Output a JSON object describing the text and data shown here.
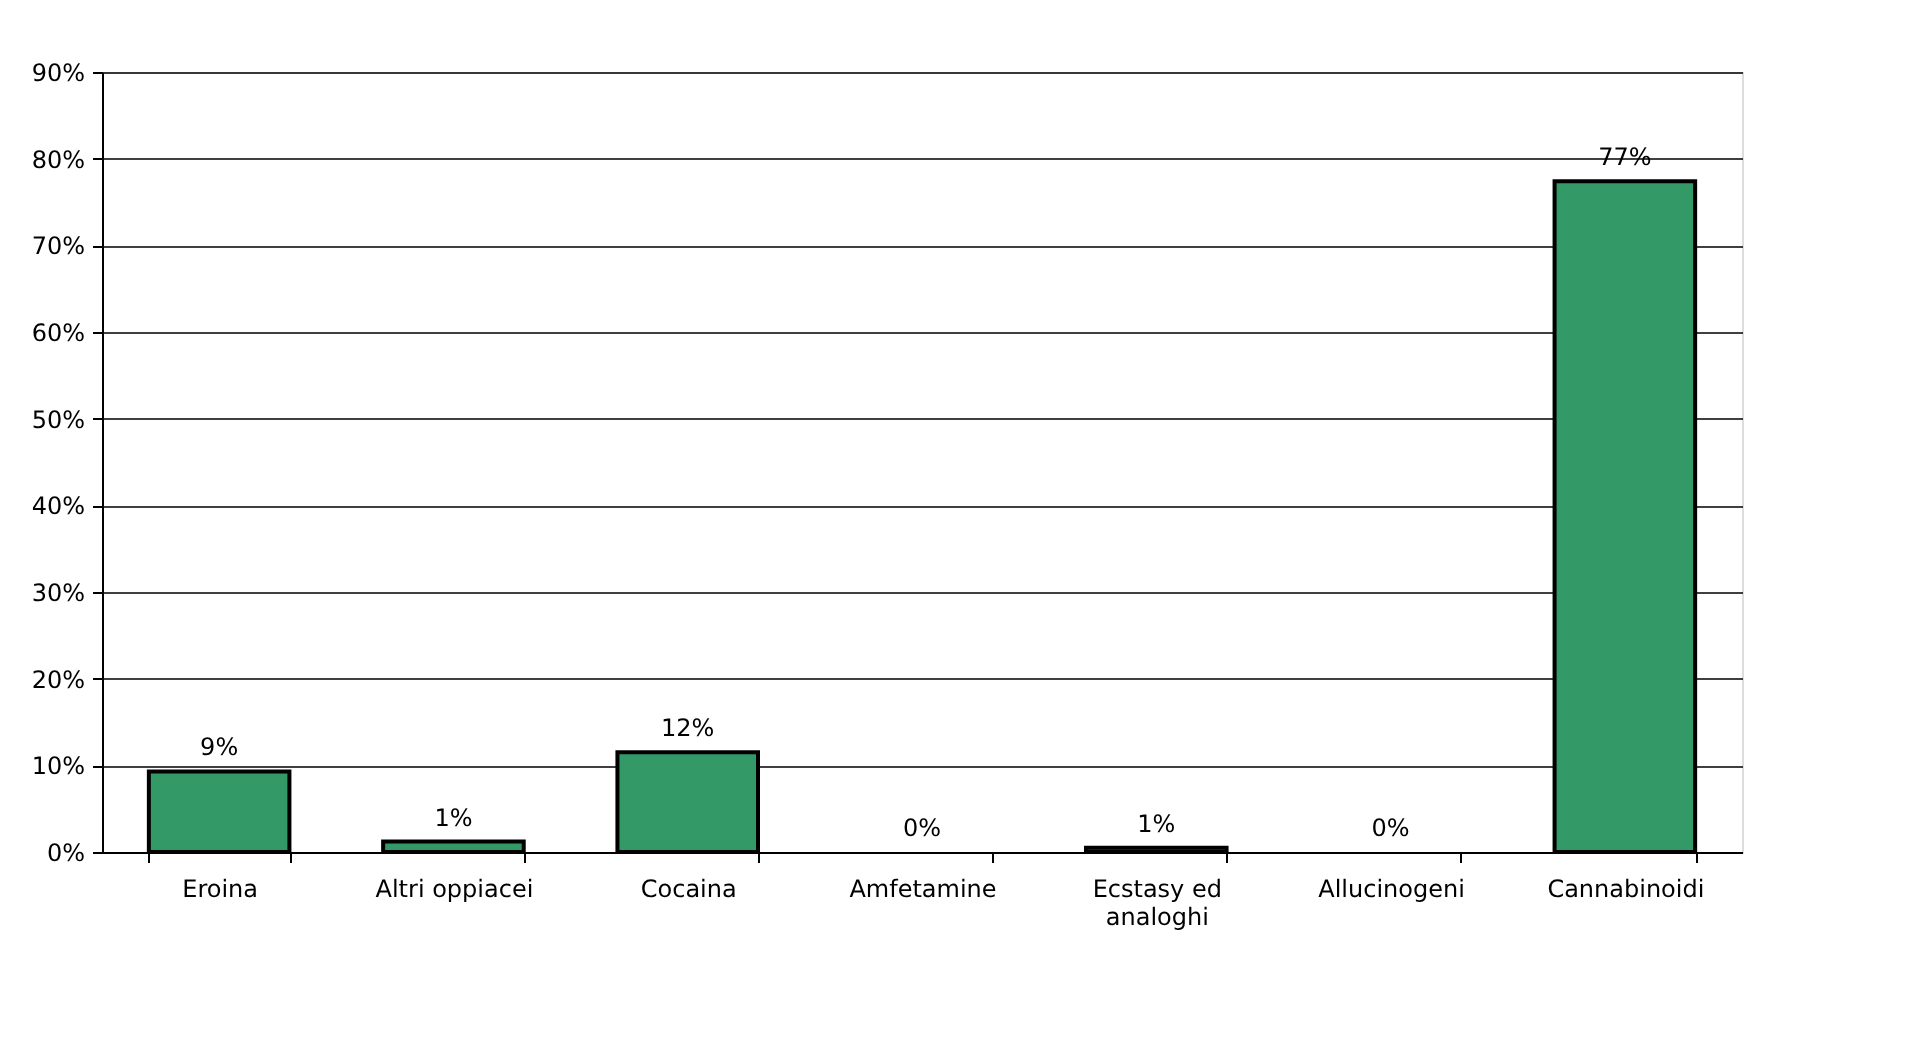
{
  "chart_data": {
    "type": "bar",
    "categories": [
      "Eroina",
      "Altri oppiacei",
      "Cocaina",
      "Amfetamine",
      "Ecstasy ed analoghi",
      "Allucinogeni",
      "Cannabinoidi"
    ],
    "values": [
      9.3,
      1.2,
      11.5,
      0,
      0.5,
      0,
      77.4
    ],
    "value_labels": [
      "9%",
      "1%",
      "12%",
      "0%",
      "1%",
      "0%",
      "77%"
    ],
    "color": "#339966",
    "ylim": [
      0,
      90
    ],
    "yticks": [
      {
        "value": 0,
        "label": "0%"
      },
      {
        "value": 10,
        "label": "10%"
      },
      {
        "value": 20,
        "label": "20%"
      },
      {
        "value": 30,
        "label": "30%"
      },
      {
        "value": 40,
        "label": "40%"
      },
      {
        "value": 50,
        "label": "50%"
      },
      {
        "value": 60,
        "label": "60%"
      },
      {
        "value": 70,
        "label": "70%"
      },
      {
        "value": 80,
        "label": "80%"
      },
      {
        "value": 90,
        "label": "90%"
      }
    ],
    "grid": "y"
  }
}
